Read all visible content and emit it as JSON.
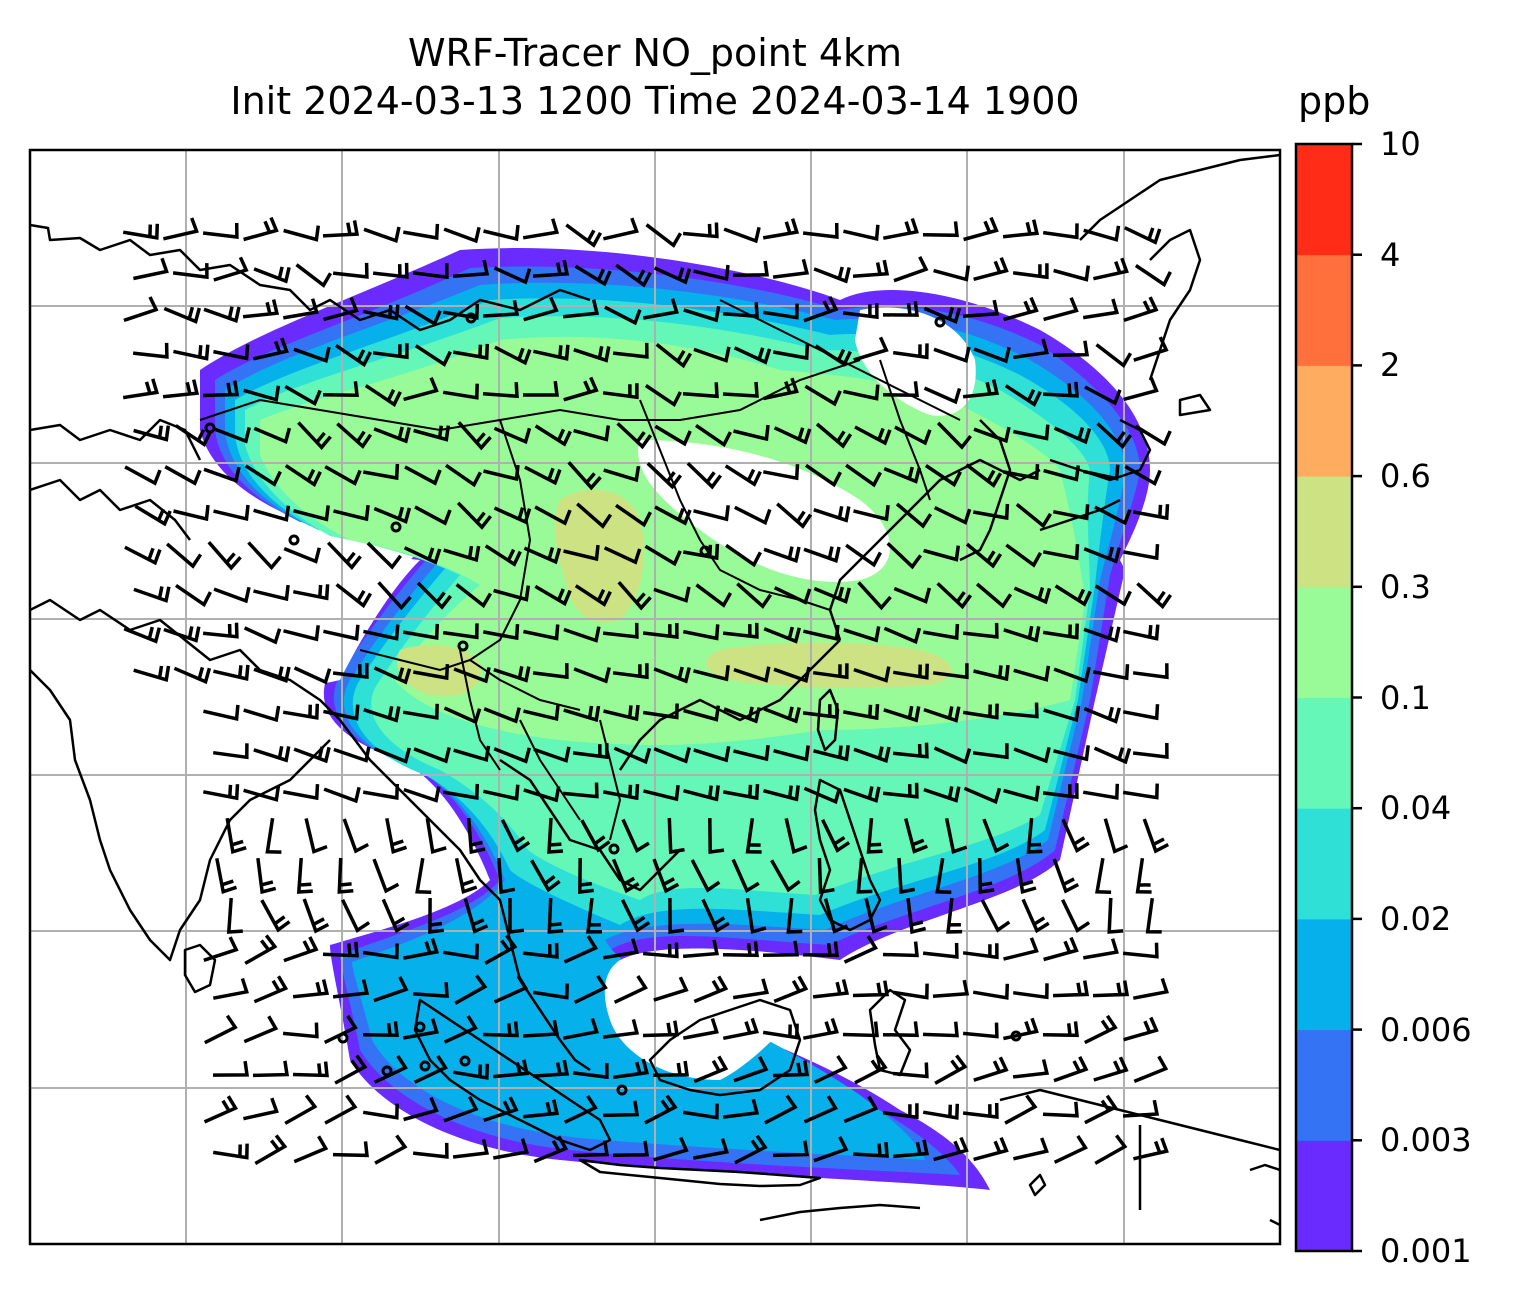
{
  "title": {
    "line1": "WRF-Tracer NO_point 4km",
    "line2": "Init 2024-03-13 1200 Time 2024-03-14 1900"
  },
  "colorbar": {
    "unit": "ppb",
    "ticks": [
      "0.001",
      "0.003",
      "0.006",
      "0.02",
      "0.04",
      "0.1",
      "0.3",
      "0.6",
      "2",
      "4",
      "10"
    ],
    "colors": [
      "#6a2bff",
      "#3474f4",
      "#06b0ea",
      "#2ee0d6",
      "#64f7b8",
      "#99fb97",
      "#cde383",
      "#fdac60",
      "#ff703c",
      "#ff2d17"
    ]
  },
  "map": {
    "field": "NO tracer concentration",
    "overlays": [
      "coastlines",
      "country borders",
      "gridlines",
      "wind barbs",
      "point sources"
    ],
    "frame_color": "#000000",
    "grid_color": "#b0b0b0"
  }
}
